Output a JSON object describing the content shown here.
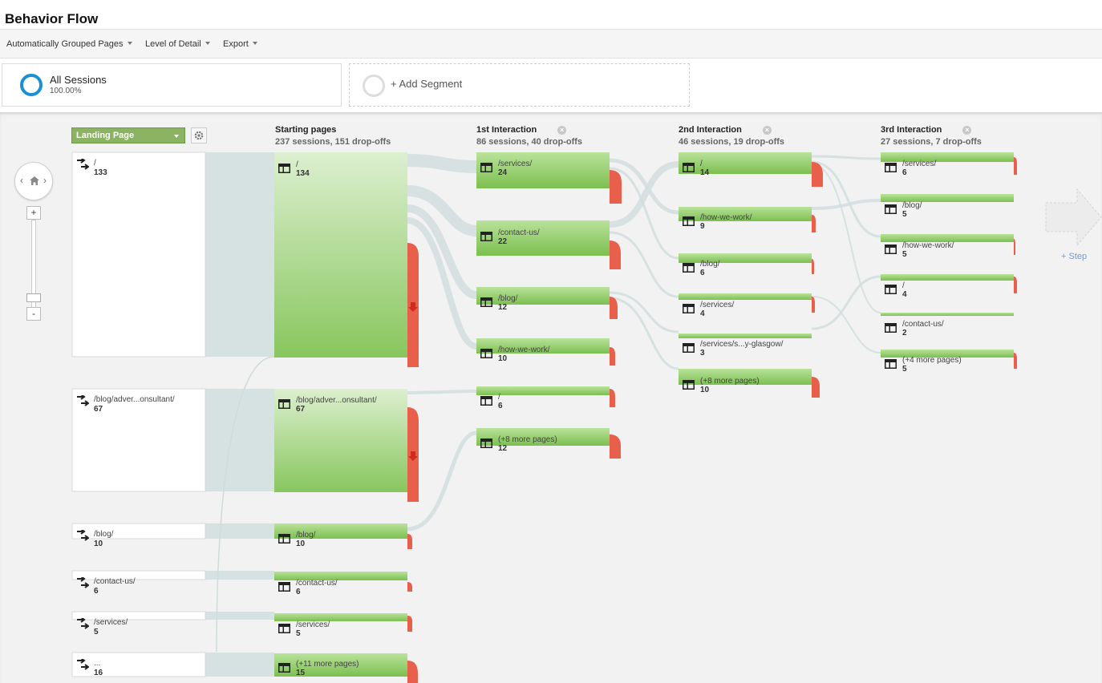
{
  "page": {
    "title": "Behavior Flow"
  },
  "toolbar": {
    "grouping": "Automatically Grouped Pages",
    "detail": "Level of Detail",
    "export": "Export"
  },
  "segments": {
    "active": {
      "name": "All Sessions",
      "pct": "100.00%"
    },
    "add_label": "+ Add Segment"
  },
  "colors": {
    "node_green": "#8cc964",
    "dropoff_red": "#e8604c",
    "flow_gray": "#d6e1e1",
    "segment_blue": "#1a8fd1"
  },
  "columns": {
    "landing": {
      "dropdown": "Landing Page"
    },
    "starting": {
      "title": "Starting pages",
      "stats": "237 sessions, 151 drop-offs"
    },
    "first": {
      "title": "1st Interaction",
      "stats": "86 sessions, 40 drop-offs"
    },
    "second": {
      "title": "2nd Interaction",
      "stats": "46 sessions, 19 drop-offs"
    },
    "third": {
      "title": "3rd Interaction",
      "stats": "27 sessions, 7 drop-offs"
    }
  },
  "landing_nodes": [
    {
      "label": "/",
      "count": "133"
    },
    {
      "label": "/blog/adver...onsultant/",
      "count": "67"
    },
    {
      "label": "/blog/",
      "count": "10"
    },
    {
      "label": "/contact-us/",
      "count": "6"
    },
    {
      "label": "/services/",
      "count": "5"
    },
    {
      "label": "...",
      "count": "16"
    }
  ],
  "starting_nodes": [
    {
      "label": "/",
      "count": "134"
    },
    {
      "label": "/blog/adver...onsultant/",
      "count": "67"
    },
    {
      "label": "/blog/",
      "count": "10"
    },
    {
      "label": "/contact-us/",
      "count": "6"
    },
    {
      "label": "/services/",
      "count": "5"
    },
    {
      "label": "(+11 more pages)",
      "count": "15"
    }
  ],
  "first_nodes": [
    {
      "label": "/services/",
      "count": "24"
    },
    {
      "label": "/contact-us/",
      "count": "22"
    },
    {
      "label": "/blog/",
      "count": "12"
    },
    {
      "label": "/how-we-work/",
      "count": "10"
    },
    {
      "label": "/",
      "count": "6"
    },
    {
      "label": "(+8 more pages)",
      "count": "12"
    }
  ],
  "second_nodes": [
    {
      "label": "/",
      "count": "14"
    },
    {
      "label": "/how-we-work/",
      "count": "9"
    },
    {
      "label": "/blog/",
      "count": "6"
    },
    {
      "label": "/services/",
      "count": "4"
    },
    {
      "label": "/services/s...y-glasgow/",
      "count": "3"
    },
    {
      "label": "(+8 more pages)",
      "count": "10"
    }
  ],
  "third_nodes": [
    {
      "label": "/services/",
      "count": "6"
    },
    {
      "label": "/blog/",
      "count": "5"
    },
    {
      "label": "/how-we-work/",
      "count": "5"
    },
    {
      "label": "/",
      "count": "4"
    },
    {
      "label": "/contact-us/",
      "count": "2"
    },
    {
      "label": "(+4 more pages)",
      "count": "5"
    }
  ],
  "step_label": "+ Step"
}
